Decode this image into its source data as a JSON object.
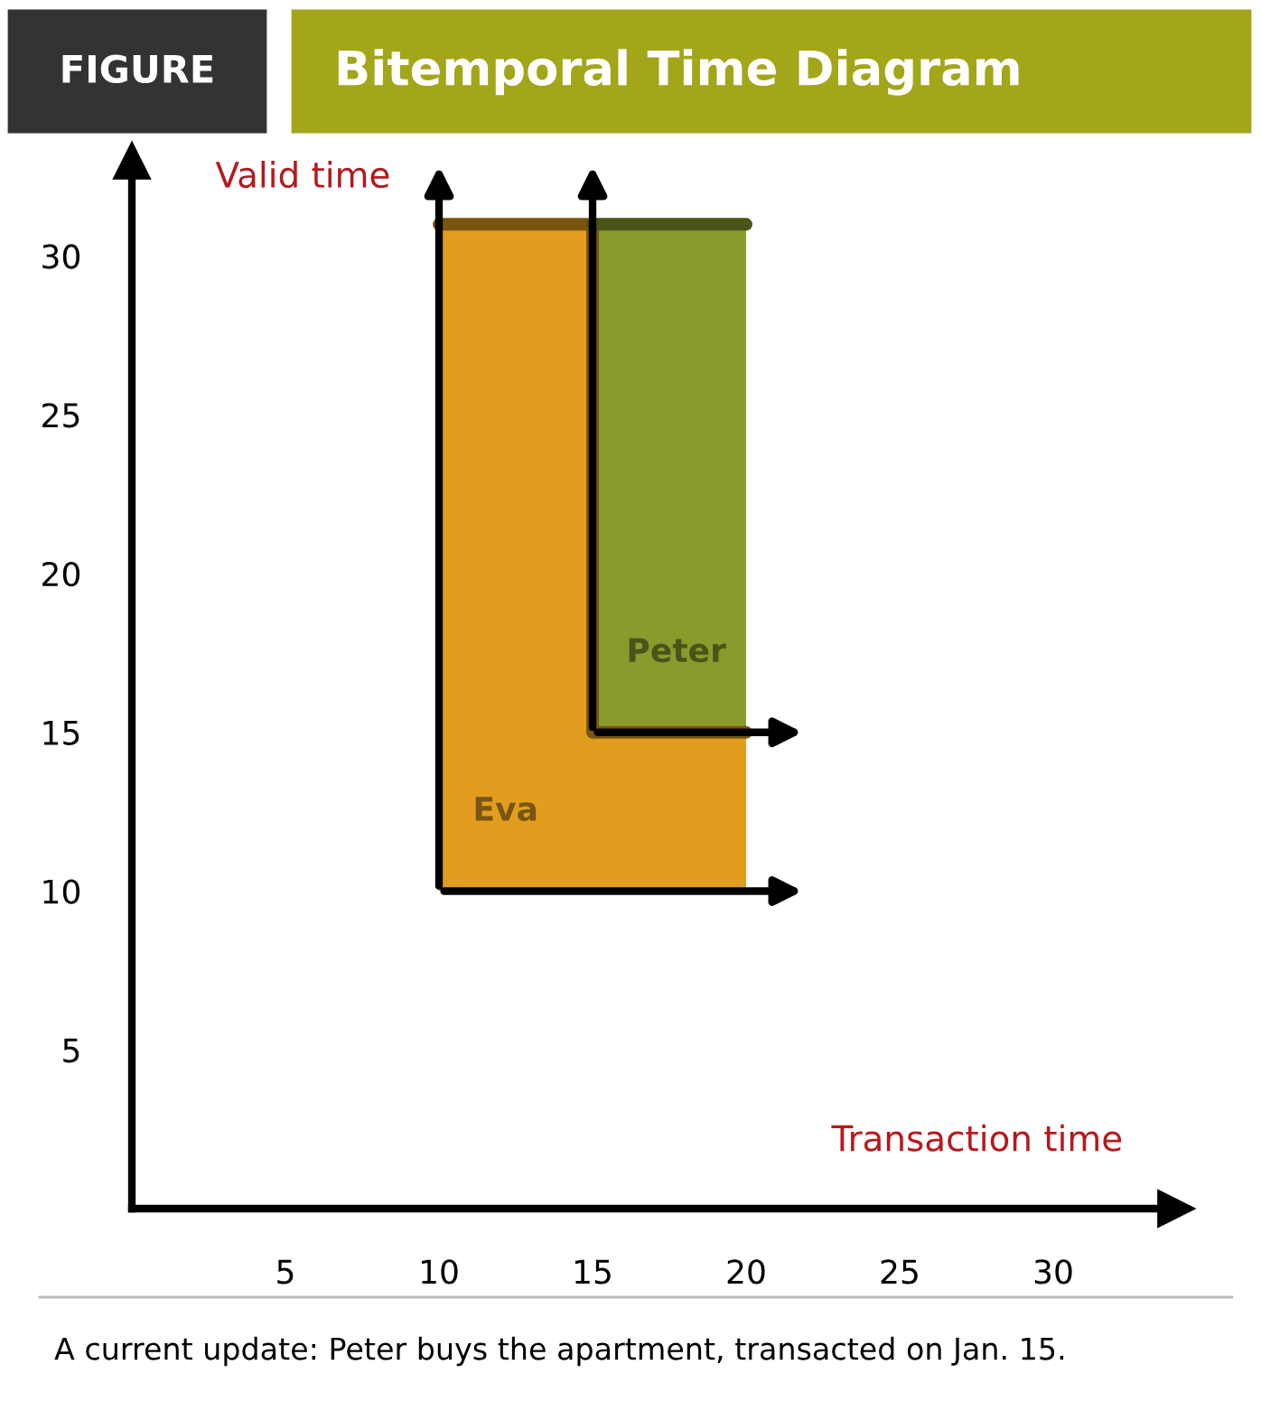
{
  "chart_data": {
    "type": "line",
    "title": "Bitemporal Time Diagram",
    "subtitle": "FIGURE",
    "xlabel": "Transaction time",
    "ylabel": "Valid time",
    "series": [
      {
        "name": "Eva",
        "color": "#7a5510",
        "x": [
          10,
          15,
          15,
          20
        ],
        "values": [
          31,
          31,
          15,
          15
        ],
        "lower": [
          10,
          10,
          10,
          10
        ],
        "upper": [
          31,
          31,
          15,
          15
        ]
      },
      {
        "name": "Peter",
        "color": "#4a5418",
        "x": [
          15,
          20
        ],
        "values": [
          31,
          31
        ],
        "lower": [
          15,
          15
        ],
        "upper": [
          31,
          31
        ]
      }
    ],
    "xlim": [
      0,
      34
    ],
    "ylim": [
      0,
      33
    ],
    "xticks": [
      5,
      10,
      15,
      20,
      25,
      30
    ],
    "yticks": [
      5,
      10,
      15,
      20,
      25,
      30
    ],
    "grid": false,
    "legend": false,
    "annotations": [
      "A current update: Peter buys the apartment, transacted on Jan. 15."
    ]
  }
}
